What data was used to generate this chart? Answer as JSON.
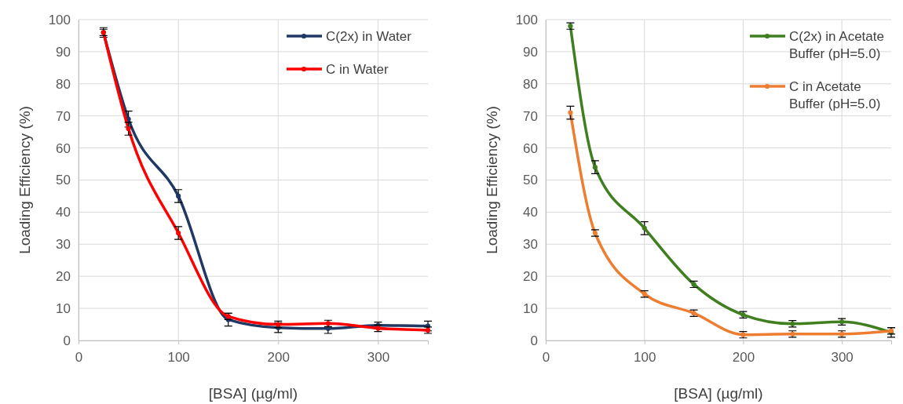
{
  "chart_data": [
    {
      "type": "line",
      "xlabel": "[BSA] (µg/ml)",
      "ylabel": "Loading Efficiency (%)",
      "x": [
        25,
        50,
        100,
        150,
        200,
        250,
        300,
        350
      ],
      "xlim": [
        0,
        350
      ],
      "xticks": [
        0,
        100,
        200,
        300
      ],
      "ylim": [
        0,
        100
      ],
      "yticks": [
        0,
        10,
        20,
        30,
        40,
        50,
        60,
        70,
        80,
        90,
        100
      ],
      "grid": true,
      "legend": "top right",
      "marker": "circle",
      "line_style": "solid",
      "series": [
        {
          "name": "C(2x) in Water",
          "color": "#1f3864",
          "values": [
            96,
            69,
            45,
            6.5,
            4,
            3.7,
            4.7,
            4.5
          ],
          "errors": [
            1.5,
            2.5,
            2,
            2,
            1.5,
            1.5,
            1,
            1.5
          ]
        },
        {
          "name": "C in Water",
          "color": "#ff0000",
          "values": [
            96,
            66,
            33.5,
            7.5,
            5,
            5.3,
            3.8,
            3.2
          ],
          "errors": [
            1,
            2,
            2,
            1,
            1,
            1,
            1,
            1
          ]
        }
      ]
    },
    {
      "type": "line",
      "xlabel": "[BSA] (µg/ml)",
      "ylabel": "Loading Efficiency (%)",
      "x": [
        25,
        50,
        100,
        150,
        200,
        250,
        300,
        350
      ],
      "xlim": [
        0,
        350
      ],
      "xticks": [
        0,
        100,
        200,
        300
      ],
      "ylim": [
        0,
        100
      ],
      "yticks": [
        0,
        10,
        20,
        30,
        40,
        50,
        60,
        70,
        80,
        90,
        100
      ],
      "grid": true,
      "legend": "top right",
      "marker": "circle",
      "line_style": "solid",
      "series": [
        {
          "name": "C(2x) in Acetate Buffer (pH=5.0)",
          "color": "#3f7f1f",
          "values": [
            98,
            54,
            35,
            17.5,
            8,
            5.2,
            5.8,
            2.5
          ],
          "errors": [
            1,
            2,
            2,
            1,
            1,
            1,
            1,
            1.5
          ]
        },
        {
          "name": "C in Acetate Buffer (pH=5.0)",
          "color": "#ed7d31",
          "values": [
            71,
            33.5,
            14.5,
            8.5,
            1.8,
            2,
            2,
            3
          ],
          "errors": [
            2,
            1,
            1,
            1,
            1,
            1,
            1,
            1
          ]
        }
      ]
    }
  ]
}
